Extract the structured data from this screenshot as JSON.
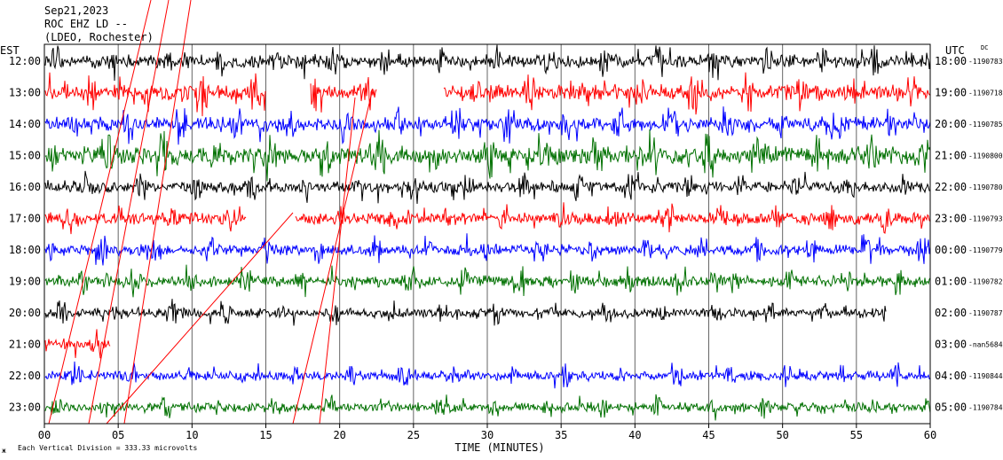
{
  "header": {
    "date": "Sep21,2023",
    "station": "ROC EHZ LD --",
    "network": "(LDEO, Rochester)"
  },
  "labels": {
    "left_zone": "EST",
    "right_zone": "UTC",
    "dc": "DC",
    "xlabel": "TIME (MINUTES)",
    "scale": "Each Vertical Division = 333.33 microvolts",
    "corner_mark": "ж"
  },
  "chart_data": {
    "type": "line",
    "title": "ROC EHZ LD --",
    "xlabel": "TIME (MINUTES)",
    "xlim": [
      0,
      60
    ],
    "x_ticks": [
      "00",
      "05",
      "10",
      "15",
      "20",
      "25",
      "30",
      "35",
      "40",
      "45",
      "50",
      "55",
      "60"
    ],
    "grid": true,
    "trace_colors": [
      "#000000",
      "#ff0000",
      "#0000ff",
      "#007000"
    ],
    "rows": [
      {
        "est": "12:00",
        "utc": "18:00",
        "dc": "-1190783",
        "color": "#000000",
        "end_minute": 60,
        "amp": 0.7
      },
      {
        "est": "13:00",
        "utc": "19:00",
        "dc": "-1190718",
        "color": "#ff0000",
        "end_minute": 60,
        "amp": 1.0,
        "gaps": [
          [
            15,
            18
          ],
          [
            22.5,
            27
          ]
        ]
      },
      {
        "est": "14:00",
        "utc": "20:00",
        "dc": "-1190785",
        "color": "#0000ff",
        "end_minute": 60,
        "amp": 0.8
      },
      {
        "est": "15:00",
        "utc": "21:00",
        "dc": "-1190800",
        "color": "#007000",
        "end_minute": 60,
        "amp": 1.3
      },
      {
        "est": "16:00",
        "utc": "22:00",
        "dc": "-1190780",
        "color": "#000000",
        "end_minute": 60,
        "amp": 0.5
      },
      {
        "est": "17:00",
        "utc": "23:00",
        "dc": "-1190793",
        "color": "#ff0000",
        "end_minute": 60,
        "amp": 0.6,
        "gaps": [
          [
            13.7,
            17
          ]
        ]
      },
      {
        "est": "18:00",
        "utc": "00:00",
        "dc": "-1190779",
        "color": "#0000ff",
        "end_minute": 60,
        "amp": 0.5
      },
      {
        "est": "19:00",
        "utc": "01:00",
        "dc": "-1190782",
        "color": "#007000",
        "end_minute": 60,
        "amp": 0.5
      },
      {
        "est": "20:00",
        "utc": "02:00",
        "dc": "-1190787",
        "color": "#000000",
        "end_minute": 57,
        "amp": 0.3
      },
      {
        "est": "21:00",
        "utc": "03:00",
        "dc": "-nan5684",
        "color": "#ff0000",
        "end_minute": 4.5,
        "amp": 0.6
      },
      {
        "est": "22:00",
        "utc": "04:00",
        "dc": "-1190844",
        "color": "#0000ff",
        "end_minute": 60,
        "amp": 0.3
      },
      {
        "est": "23:00",
        "utc": "05:00",
        "dc": "-1190784",
        "color": "#007000",
        "end_minute": 60,
        "amp": 0.3
      }
    ]
  }
}
